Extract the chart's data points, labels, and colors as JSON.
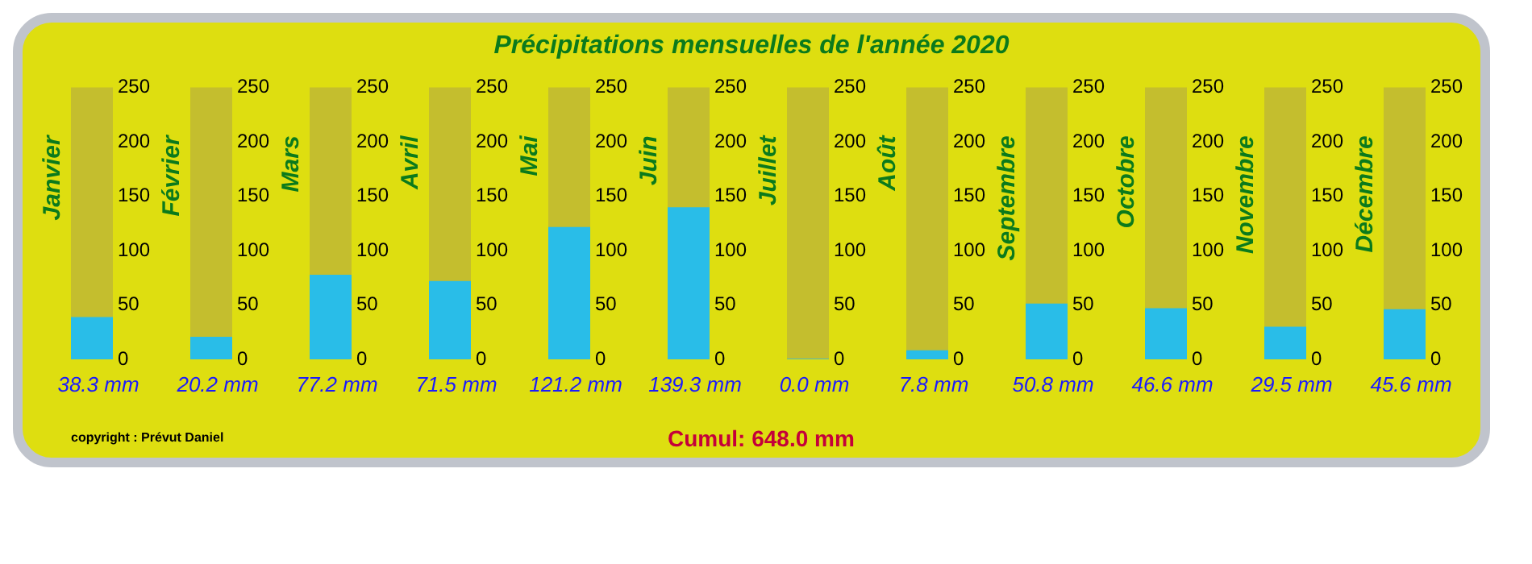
{
  "chart_data": [
    {
      "type": "other",
      "title": "Précipitations mensuelles de l'année 2020",
      "annotations": [
        "copyright : Prévut Daniel",
        "Cumul: 648.0 mm"
      ]
    },
    {
      "type": "bar",
      "categories": [
        "Janvier"
      ],
      "bands": [
        {
          "axis": "y",
          "from": 0,
          "to": 250,
          "color": "#c4be2e"
        }
      ],
      "values": [
        38.3
      ],
      "value_labels": [
        "38.3 mm"
      ],
      "color": "#29bde8",
      "ylim": [
        0,
        250
      ],
      "yticks": [
        0,
        50,
        100,
        150,
        200,
        250
      ]
    },
    {
      "type": "bar",
      "categories": [
        "Février"
      ],
      "bands": [
        {
          "axis": "y",
          "from": 0,
          "to": 250,
          "color": "#c4be2e"
        }
      ],
      "values": [
        20.2
      ],
      "value_labels": [
        "20.2 mm"
      ],
      "color": "#29bde8",
      "ylim": [
        0,
        250
      ],
      "yticks": [
        0,
        50,
        100,
        150,
        200,
        250
      ]
    },
    {
      "type": "bar",
      "categories": [
        "Mars"
      ],
      "bands": [
        {
          "axis": "y",
          "from": 0,
          "to": 250,
          "color": "#c4be2e"
        }
      ],
      "values": [
        77.2
      ],
      "value_labels": [
        "77.2 mm"
      ],
      "color": "#29bde8",
      "ylim": [
        0,
        250
      ],
      "yticks": [
        0,
        50,
        100,
        150,
        200,
        250
      ]
    },
    {
      "type": "bar",
      "categories": [
        "Avril"
      ],
      "bands": [
        {
          "axis": "y",
          "from": 0,
          "to": 250,
          "color": "#c4be2e"
        }
      ],
      "values": [
        71.5
      ],
      "value_labels": [
        "71.5 mm"
      ],
      "color": "#29bde8",
      "ylim": [
        0,
        250
      ],
      "yticks": [
        0,
        50,
        100,
        150,
        200,
        250
      ]
    },
    {
      "type": "bar",
      "categories": [
        "Mai"
      ],
      "bands": [
        {
          "axis": "y",
          "from": 0,
          "to": 250,
          "color": "#c4be2e"
        }
      ],
      "values": [
        121.2
      ],
      "value_labels": [
        "121.2 mm"
      ],
      "color": "#29bde8",
      "ylim": [
        0,
        250
      ],
      "yticks": [
        0,
        50,
        100,
        150,
        200,
        250
      ]
    },
    {
      "type": "bar",
      "categories": [
        "Juin"
      ],
      "bands": [
        {
          "axis": "y",
          "from": 0,
          "to": 250,
          "color": "#c4be2e"
        }
      ],
      "values": [
        139.3
      ],
      "value_labels": [
        "139.3 mm"
      ],
      "color": "#29bde8",
      "ylim": [
        0,
        250
      ],
      "yticks": [
        0,
        50,
        100,
        150,
        200,
        250
      ]
    },
    {
      "type": "bar",
      "categories": [
        "Juillet"
      ],
      "bands": [
        {
          "axis": "y",
          "from": 0,
          "to": 250,
          "color": "#c4be2e"
        }
      ],
      "values": [
        0.0
      ],
      "value_labels": [
        "0.0 mm"
      ],
      "color": "#29bde8",
      "ylim": [
        0,
        250
      ],
      "yticks": [
        0,
        50,
        100,
        150,
        200,
        250
      ]
    },
    {
      "type": "bar",
      "categories": [
        "Août"
      ],
      "bands": [
        {
          "axis": "y",
          "from": 0,
          "to": 250,
          "color": "#c4be2e"
        }
      ],
      "values": [
        7.8
      ],
      "value_labels": [
        "7.8 mm"
      ],
      "color": "#29bde8",
      "ylim": [
        0,
        250
      ],
      "yticks": [
        0,
        50,
        100,
        150,
        200,
        250
      ]
    },
    {
      "type": "bar",
      "categories": [
        "Septembre"
      ],
      "bands": [
        {
          "axis": "y",
          "from": 0,
          "to": 250,
          "color": "#c4be2e"
        }
      ],
      "values": [
        50.8
      ],
      "value_labels": [
        "50.8 mm"
      ],
      "color": "#29bde8",
      "ylim": [
        0,
        250
      ],
      "yticks": [
        0,
        50,
        100,
        150,
        200,
        250
      ]
    },
    {
      "type": "bar",
      "categories": [
        "Octobre"
      ],
      "bands": [
        {
          "axis": "y",
          "from": 0,
          "to": 250,
          "color": "#c4be2e"
        }
      ],
      "values": [
        46.6
      ],
      "value_labels": [
        "46.6 mm"
      ],
      "color": "#29bde8",
      "ylim": [
        0,
        250
      ],
      "yticks": [
        0,
        50,
        100,
        150,
        200,
        250
      ]
    },
    {
      "type": "bar",
      "categories": [
        "Novembre"
      ],
      "bands": [
        {
          "axis": "y",
          "from": 0,
          "to": 250,
          "color": "#c4be2e"
        }
      ],
      "values": [
        29.5
      ],
      "value_labels": [
        "29.5 mm"
      ],
      "color": "#29bde8",
      "ylim": [
        0,
        250
      ],
      "yticks": [
        0,
        50,
        100,
        150,
        200,
        250
      ]
    },
    {
      "type": "bar",
      "categories": [
        "Décembre"
      ],
      "bands": [
        {
          "axis": "y",
          "from": 0,
          "to": 250,
          "color": "#c4be2e"
        }
      ],
      "values": [
        45.6
      ],
      "value_labels": [
        "45.6 mm"
      ],
      "color": "#29bde8",
      "ylim": [
        0,
        250
      ],
      "yticks": [
        0,
        50,
        100,
        150,
        200,
        250
      ]
    }
  ]
}
